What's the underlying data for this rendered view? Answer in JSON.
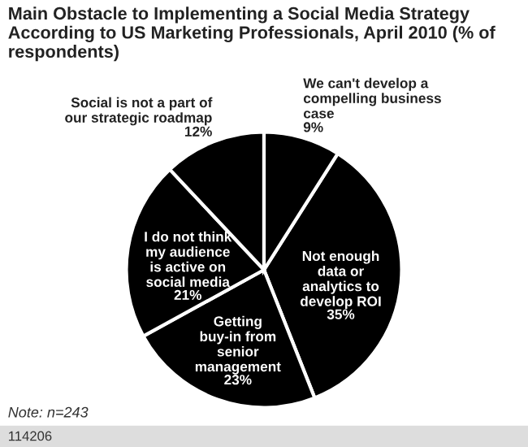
{
  "chart_data": {
    "type": "pie",
    "title": "Main Obstacle to Implementing a Social Media Strategy According to US Marketing Professionals, April 2010 (% of respondents)",
    "categories": [
      "Not enough data or analytics to develop ROI",
      "Getting buy-in from senior management",
      "I do not think my audience is active on social media",
      "Social is not a part of our strategic roadmap",
      "We can't develop a compelling business case"
    ],
    "values": [
      35,
      23,
      21,
      12,
      9
    ],
    "value_labels": [
      "35%",
      "23%",
      "21%",
      "12%",
      "9%"
    ],
    "colors": [
      "#000000",
      "#000000",
      "#000000",
      "#000000",
      "#000000"
    ],
    "annotations": [
      "Note: n=243",
      "114206"
    ]
  }
}
